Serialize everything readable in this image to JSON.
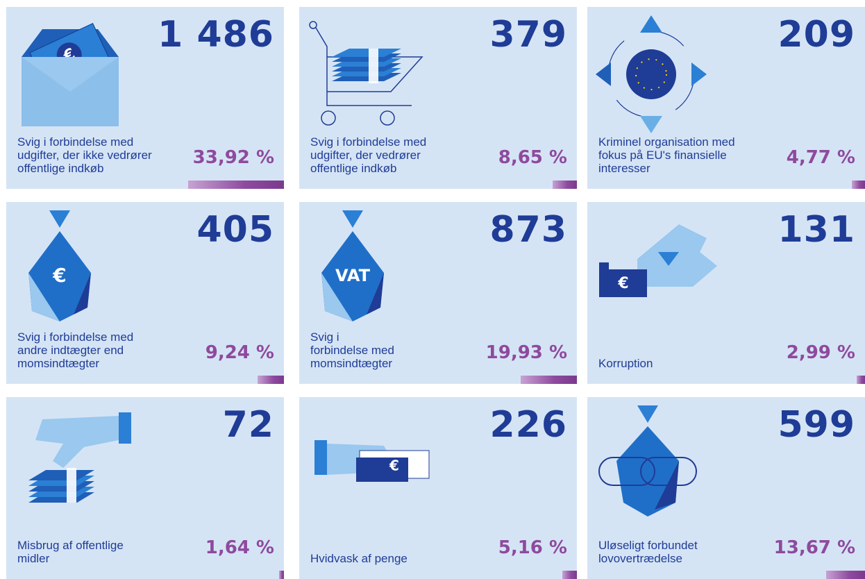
{
  "cards": [
    {
      "count": "1 486",
      "icon_text": "€",
      "label": "Svig i forbindelse med\nudgifter, der ikke vedrører\noffentlige indkøb",
      "share": {
        "value": 33.92,
        "label": "33,92 %"
      }
    },
    {
      "count": "379",
      "label": "Svig i forbindelse med\nudgifter, der vedrører\noffentlige indkøb",
      "share": {
        "value": 8.65,
        "label": "8,65 %"
      }
    },
    {
      "count": "209",
      "label": "Kriminel organisation med\nfokus på EU's finansielle\ninteresser",
      "share": {
        "value": 4.77,
        "label": "4,77 %"
      }
    },
    {
      "count": "405",
      "icon_text": "€",
      "label": "Svig i forbindelse med\nandre indtægter end\nmomsindtægter",
      "share": {
        "value": 9.24,
        "label": "9,24 %"
      }
    },
    {
      "count": "873",
      "icon_text": "VAT",
      "label": "Svig i\nforbindelse med\nmomsindtægter",
      "share": {
        "value": 19.93,
        "label": "19,93 %"
      }
    },
    {
      "count": "131",
      "icon_text": "€",
      "label": "Korruption",
      "share": {
        "value": 2.99,
        "label": "2,99 %"
      }
    },
    {
      "count": "72",
      "label": "Misbrug af offentlige\nmidler",
      "share": {
        "value": 1.64,
        "label": "1,64 %"
      }
    },
    {
      "count": "226",
      "icon_text": "€",
      "label": "Hvidvask af penge",
      "share": {
        "value": 5.16,
        "label": "5,16 %"
      }
    },
    {
      "count": "599",
      "label": "Uløseligt forbundet\nlovovertrædelse",
      "share": {
        "value": 13.67,
        "label": "13,67 %"
      }
    }
  ]
}
